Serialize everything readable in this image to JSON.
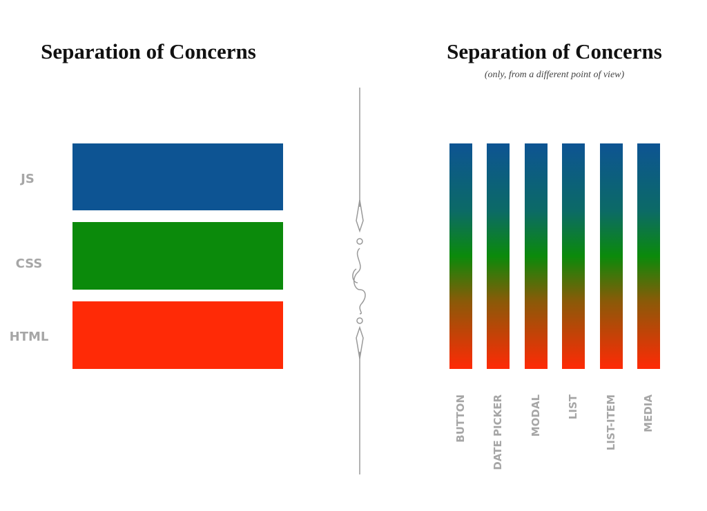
{
  "left": {
    "title": "Separation of Concerns",
    "layers": [
      "JS",
      "CSS",
      "HTML"
    ]
  },
  "right": {
    "title": "Separation of Concerns",
    "subtitle": "(only, from a different point of view)",
    "components": [
      "BUTTON",
      "DATE PICKER",
      "MODAL",
      "LIST",
      "LIST-ITEM",
      "MEDIA"
    ]
  }
}
